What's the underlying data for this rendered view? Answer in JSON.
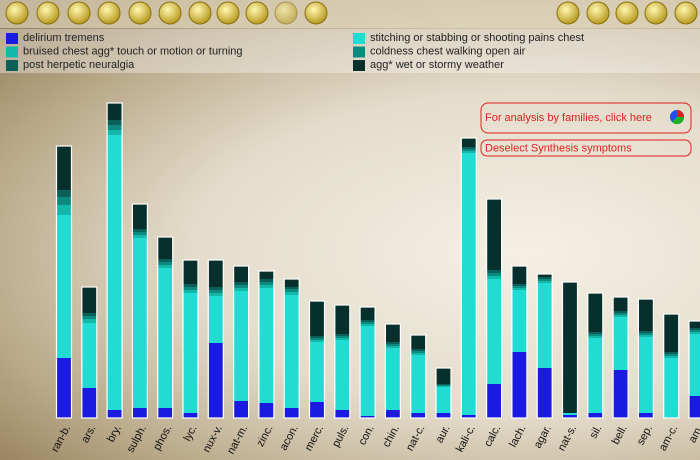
{
  "chart_data": {
    "type": "stacked_bar",
    "categories": [
      "ran-b.",
      "ars.",
      "bry.",
      "sulph.",
      "phos.",
      "lyc.",
      "nux-v.",
      "nat-m.",
      "zinc.",
      "acon.",
      "merc.",
      "puls.",
      "con.",
      "chin.",
      "nat-c.",
      "aur.",
      "kali-c.",
      "calc.",
      "lach.",
      "agar.",
      "nat-s.",
      "sil.",
      "bell.",
      "sep.",
      "am-c.",
      "am."
    ],
    "series": [
      {
        "name": "delirium tremens",
        "color": "#1a1ae0",
        "values": [
          60,
          30,
          8,
          10,
          10,
          5,
          75,
          17,
          15,
          10,
          16,
          8,
          2,
          8,
          5,
          5,
          3,
          34,
          66,
          50,
          3,
          5,
          48,
          5,
          0,
          22
        ]
      },
      {
        "name": "stitching or stabbing or shooting pains chest",
        "color": "#22dcd4",
        "values": [
          143,
          65,
          275,
          170,
          140,
          120,
          47,
          110,
          115,
          113,
          60,
          70,
          90,
          62,
          58,
          26,
          262,
          105,
          62,
          85,
          2,
          75,
          53,
          76,
          60,
          62
        ]
      },
      {
        "name": "bruised chest agg* touch or motion or turning",
        "color": "#14b8a8",
        "values": [
          10,
          4,
          5,
          3,
          3,
          3,
          3,
          3,
          3,
          3,
          2,
          2,
          2,
          2,
          2,
          1,
          2,
          3,
          2,
          2,
          0,
          2,
          2,
          2,
          2,
          2
        ]
      },
      {
        "name": "coldness chest walking open air",
        "color": "#0c8a80",
        "values": [
          8,
          3,
          5,
          3,
          3,
          3,
          3,
          3,
          3,
          3,
          2,
          2,
          2,
          2,
          2,
          1,
          2,
          3,
          2,
          2,
          0,
          2,
          2,
          2,
          2,
          2
        ]
      },
      {
        "name": "post herpetic neuralgia",
        "color": "#0a6058",
        "values": [
          7,
          3,
          5,
          3,
          3,
          3,
          3,
          3,
          3,
          2,
          2,
          2,
          2,
          2,
          2,
          1,
          2,
          3,
          2,
          2,
          0,
          2,
          2,
          2,
          2,
          2
        ]
      },
      {
        "name": "agg* wet or stormy weather",
        "color": "#07302c",
        "values": [
          44,
          26,
          17,
          25,
          22,
          24,
          27,
          16,
          8,
          8,
          35,
          29,
          13,
          18,
          14,
          16,
          9,
          71,
          18,
          3,
          131,
          39,
          14,
          32,
          38,
          7
        ]
      }
    ],
    "ylim": [
      0,
      320
    ]
  },
  "buttons": {
    "families": "For analysis by families, click here",
    "deselect": "Deselect Synthesis symptoms"
  }
}
